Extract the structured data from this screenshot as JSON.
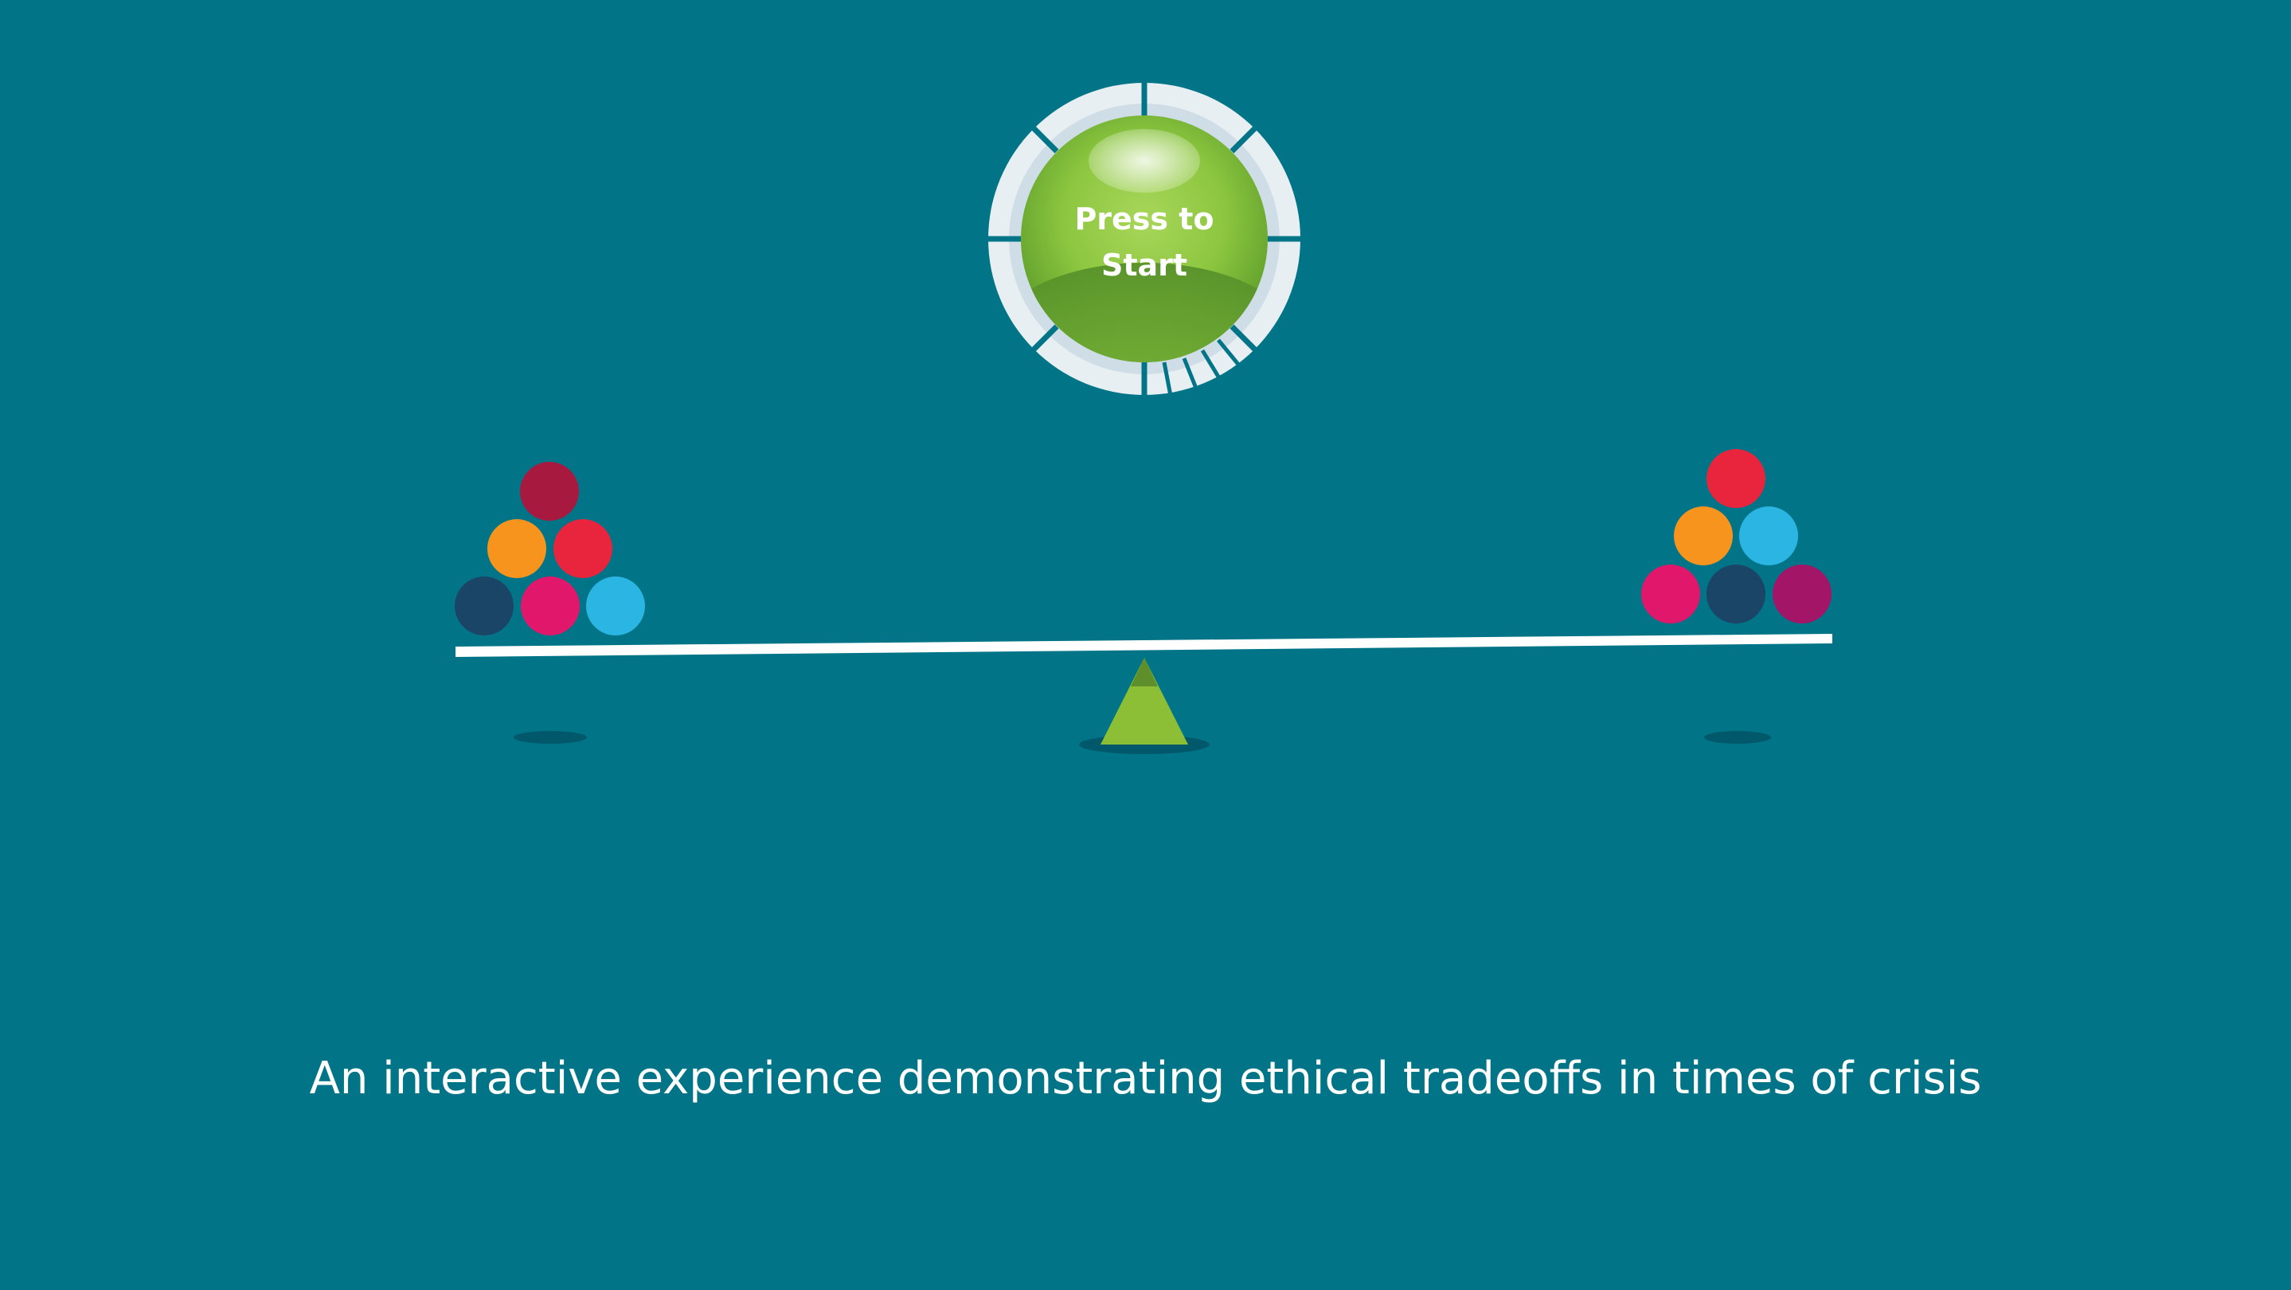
{
  "start_button": {
    "line1": "Press to",
    "line2": "Start"
  },
  "tagline": "An interactive experience demonstrating ethical tradeoffs in times of crisis",
  "colors": {
    "background": "#017587",
    "beam": "#ffffff",
    "fulcrum": "#8cbf35",
    "fulcrum_top": "#5e8f2a",
    "button_green": "#8cc63f",
    "ring": "#e8eff3"
  },
  "left_pan": {
    "balls": [
      "maroon",
      "orange",
      "red",
      "navy",
      "magenta",
      "sky-blue"
    ],
    "colors": [
      "#a8193f",
      "#f7941d",
      "#e8253d",
      "#1b4567",
      "#e0176a",
      "#2bb5e3"
    ]
  },
  "right_pan": {
    "balls": [
      "red",
      "orange",
      "sky-blue",
      "magenta",
      "navy",
      "plum"
    ],
    "colors": [
      "#e8253d",
      "#f7941d",
      "#2bb5e3",
      "#e0176a",
      "#1b4567",
      "#a31566"
    ]
  }
}
